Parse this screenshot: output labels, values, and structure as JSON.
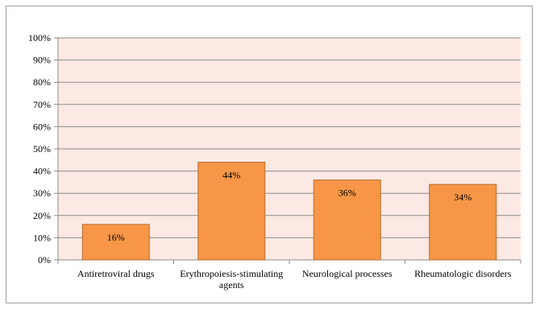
{
  "chart_data": {
    "type": "bar",
    "categories": [
      [
        "Antiretroviral drugs"
      ],
      [
        "Erythropoiesis-stimulating",
        "agents"
      ],
      [
        "Neurological processes"
      ],
      [
        "Rheumatologic disorders"
      ]
    ],
    "values": [
      16,
      44,
      36,
      34
    ],
    "data_labels": [
      "16%",
      "44%",
      "36%",
      "34%"
    ],
    "yticks": [
      "0%",
      "10%",
      "20%",
      "30%",
      "40%",
      "50%",
      "60%",
      "70%",
      "80%",
      "90%",
      "100%"
    ],
    "ylim": [
      0,
      100
    ],
    "grid": true,
    "legend": "none",
    "colors": {
      "bar": "#f79646",
      "bar_edge": "#b66d31",
      "plot_bg": "#fce9e3",
      "grid": "#8c8c8c"
    }
  }
}
